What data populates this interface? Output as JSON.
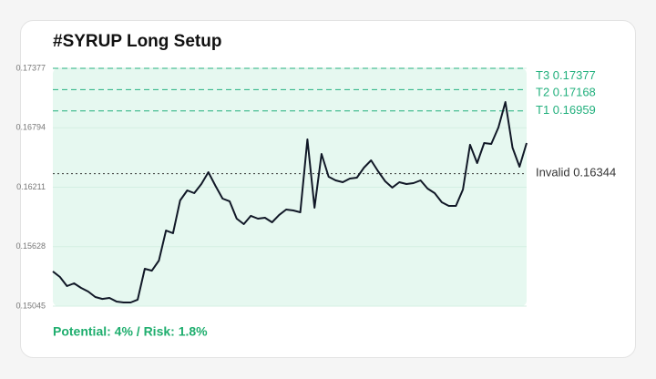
{
  "chart_data": {
    "type": "line",
    "title": "#SYRUP Long Setup",
    "values": [
      0.15385,
      0.15331,
      0.15242,
      0.15268,
      0.15224,
      0.15188,
      0.15134,
      0.15116,
      0.15125,
      0.1509,
      0.15081,
      0.15081,
      0.15108,
      0.15411,
      0.15393,
      0.15492,
      0.15787,
      0.1576,
      0.16081,
      0.1618,
      0.16153,
      0.16242,
      0.16358,
      0.16224,
      0.16099,
      0.16073,
      0.15903,
      0.15849,
      0.1593,
      0.15903,
      0.15912,
      0.15867,
      0.15939,
      0.15992,
      0.15983,
      0.15965,
      0.1668,
      0.1601,
      0.16537,
      0.16314,
      0.16278,
      0.1626,
      0.16296,
      0.16305,
      0.16403,
      0.16475,
      0.16367,
      0.16269,
      0.16207,
      0.1626,
      0.16242,
      0.16251,
      0.16278,
      0.16198,
      0.16153,
      0.16064,
      0.16028,
      0.16028,
      0.16189,
      0.16627,
      0.16448,
      0.16644,
      0.16635,
      0.16796,
      0.17046,
      0.166,
      0.16412,
      0.16644
    ],
    "color": "#111827",
    "ylim": [
      0.15045,
      0.17377
    ],
    "yticks": [
      0.15045,
      0.15628,
      0.16211,
      0.16794,
      0.17377
    ],
    "grid": true,
    "levels": [
      {
        "name": "T3",
        "value": 0.17377,
        "color": "#22b07d",
        "style": "dashed"
      },
      {
        "name": "T2",
        "value": 0.17168,
        "color": "#22b07d",
        "style": "dashed"
      },
      {
        "name": "T1",
        "value": 0.16959,
        "color": "#22b07d",
        "style": "dashed"
      },
      {
        "name": "Invalid",
        "value": 0.16344,
        "color": "#333333",
        "style": "dotted"
      }
    ],
    "footer": "Potential: 4% / Risk: 1.8%"
  }
}
